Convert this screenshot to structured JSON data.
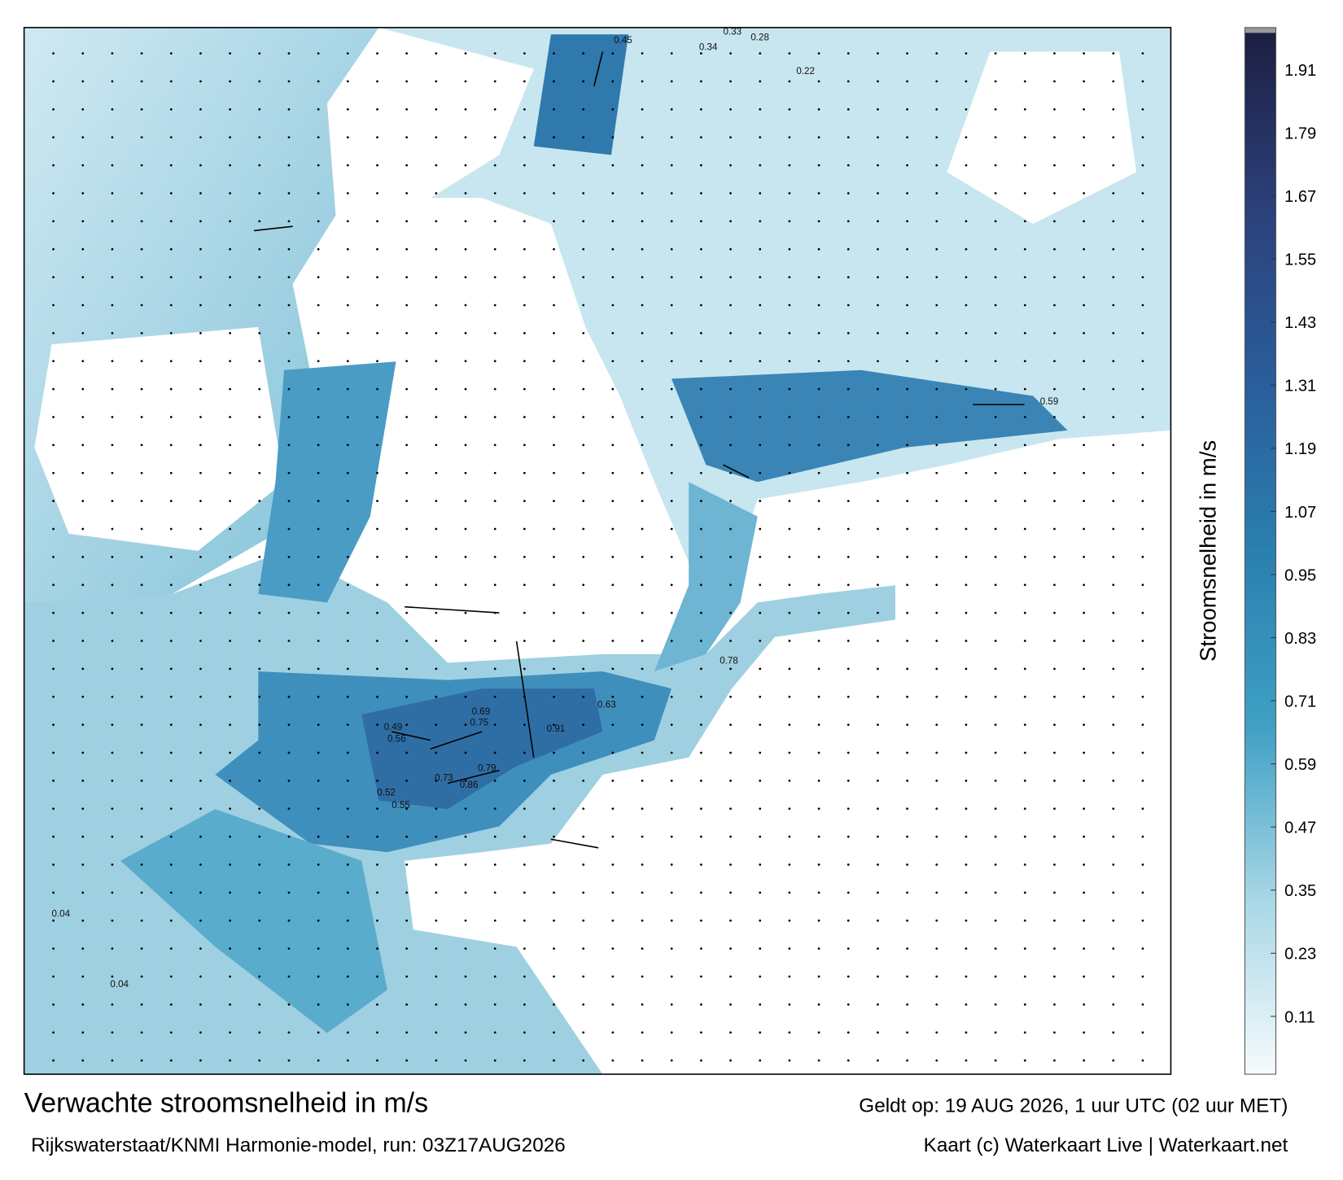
{
  "header": {
    "title": "Verwachte stroomsnelheid in m/s",
    "subtitle": "Rijkswaterstaat/KNMI Harmonie-model, run: 03Z17AUG2026",
    "valid_time": "Geldt op: 19 AUG 2026, 1 uur UTC (02 uur MET)",
    "credit": "Kaart (c) Waterkaart Live | Waterkaart.net"
  },
  "colorbar": {
    "label": "Stroomsnelheid in m/s",
    "lim": [
      0,
      1.98
    ],
    "ticks": [
      0.11,
      0.23,
      0.35,
      0.47,
      0.59,
      0.71,
      0.83,
      0.95,
      1.07,
      1.19,
      1.31,
      1.43,
      1.55,
      1.67,
      1.79,
      1.91
    ],
    "colors": [
      "#f5fafc",
      "#a8d7e6",
      "#3fa0c4",
      "#2a80b0",
      "#2a5d9b",
      "#2c407a",
      "#1c1f42"
    ]
  },
  "map": {
    "current_labels": [
      "0.45",
      "0.34",
      "0.33",
      "0.28",
      "0.22",
      "0.91",
      "0.86",
      "0.73",
      "0.79",
      "0.69",
      "0.75",
      "0.63",
      "0.78",
      "0.56",
      "0.52",
      "0.55",
      "0.49",
      "0.59",
      "0.04",
      "0.04"
    ]
  }
}
